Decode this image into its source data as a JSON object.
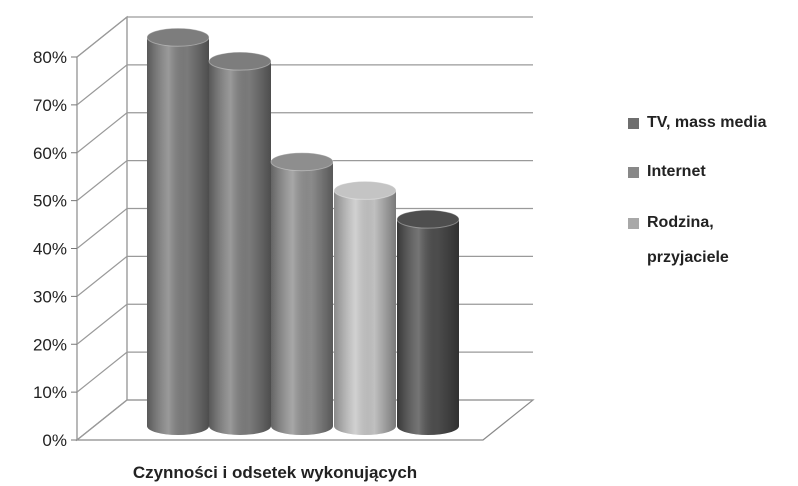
{
  "chart_data": {
    "type": "bar",
    "style": "3d-cylinder",
    "xlabel": "Czynności i odsetek wykonujących",
    "ylabel": "",
    "ylim": [
      0,
      80
    ],
    "y_ticks": [
      "0%",
      "10%",
      "20%",
      "30%",
      "40%",
      "50%",
      "60%",
      "70%",
      "80%"
    ],
    "y_tick_values": [
      0,
      10,
      20,
      30,
      40,
      50,
      60,
      70,
      80
    ],
    "grid": true,
    "legend_position": "right",
    "legend": [
      {
        "label": "TV, mass media",
        "color": "#6e6e6e"
      },
      {
        "label": "Internet",
        "color": "#888888"
      },
      {
        "label": "Rodzina, przyjaciele",
        "color": "#a8a8a8"
      }
    ],
    "bars": [
      {
        "value": 81,
        "color": "#7d7d7d"
      },
      {
        "value": 76,
        "color": "#7d7d7d"
      },
      {
        "value": 55,
        "color": "#8e8e8e"
      },
      {
        "value": 49,
        "color": "#c4c4c4"
      },
      {
        "value": 43,
        "color": "#4e4e4e"
      }
    ]
  }
}
